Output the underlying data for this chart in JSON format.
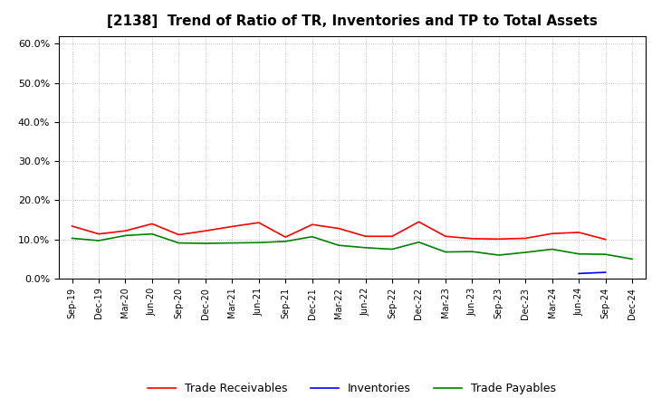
{
  "title": "[2138]  Trend of Ratio of TR, Inventories and TP to Total Assets",
  "labels": [
    "Sep-19",
    "Dec-19",
    "Mar-20",
    "Jun-20",
    "Sep-20",
    "Dec-20",
    "Mar-21",
    "Jun-21",
    "Sep-21",
    "Dec-21",
    "Mar-22",
    "Jun-22",
    "Sep-22",
    "Dec-22",
    "Mar-23",
    "Jun-23",
    "Sep-23",
    "Dec-23",
    "Mar-24",
    "Jun-24",
    "Sep-24",
    "Dec-24"
  ],
  "trade_receivables": [
    0.134,
    0.114,
    0.122,
    0.14,
    0.112,
    0.122,
    0.133,
    0.143,
    0.106,
    0.138,
    0.128,
    0.108,
    0.108,
    0.145,
    0.108,
    0.102,
    0.101,
    0.103,
    0.115,
    0.118,
    0.1,
    null
  ],
  "inventories": [
    null,
    null,
    null,
    null,
    null,
    null,
    null,
    null,
    null,
    null,
    null,
    null,
    null,
    null,
    null,
    null,
    null,
    null,
    null,
    0.013,
    0.016,
    null
  ],
  "trade_payables": [
    0.103,
    0.097,
    0.11,
    0.114,
    0.091,
    0.09,
    0.091,
    0.092,
    0.095,
    0.107,
    0.085,
    0.079,
    0.075,
    0.093,
    0.068,
    0.069,
    0.06,
    0.067,
    0.075,
    0.063,
    0.062,
    0.05
  ],
  "ylim": [
    0.0,
    0.62
  ],
  "yticks": [
    0.0,
    0.1,
    0.2,
    0.3,
    0.4,
    0.5,
    0.6
  ],
  "ytick_labels": [
    "0.0%",
    "10.0%",
    "20.0%",
    "30.0%",
    "40.0%",
    "50.0%",
    "60.0%"
  ],
  "tr_color": "#ff0000",
  "inv_color": "#0000ff",
  "tp_color": "#008000",
  "bg_color": "#ffffff",
  "grid_color": "#b0b0b0",
  "title_fontsize": 11,
  "legend_entries": [
    "Trade Receivables",
    "Inventories",
    "Trade Payables"
  ]
}
